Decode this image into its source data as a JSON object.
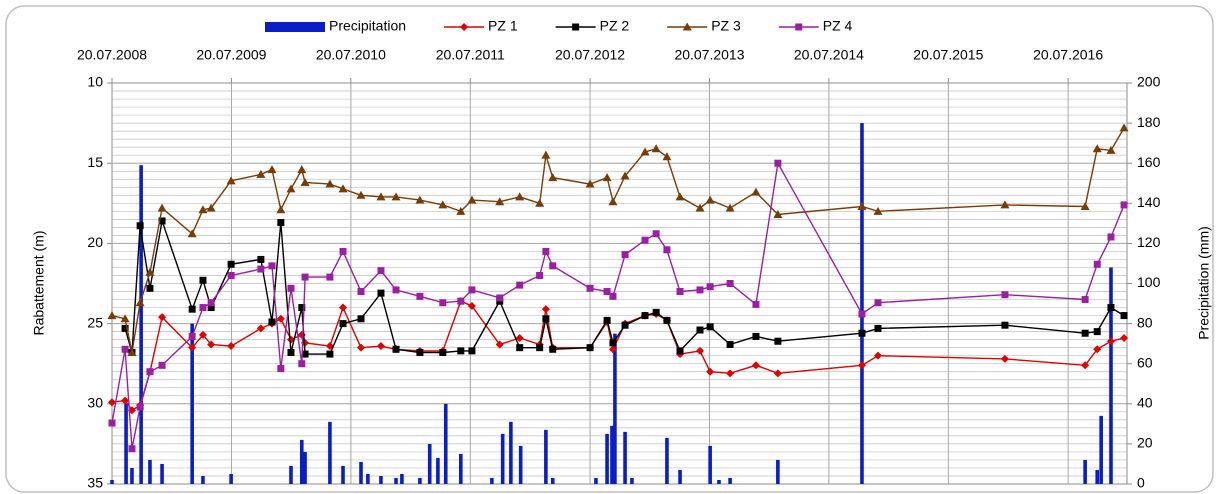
{
  "chart_data": {
    "type": "line",
    "y_label": "Rabattement  (m)",
    "y2_label": "Precipitation (mm)",
    "ylim": [
      10,
      35
    ],
    "y_reversed": true,
    "yticks": [
      10,
      15,
      20,
      25,
      30,
      35
    ],
    "y_minor_step": 0.5,
    "y2lim": [
      0,
      200
    ],
    "y2ticks": [
      0,
      20,
      40,
      60,
      80,
      100,
      120,
      140,
      160,
      180,
      200
    ],
    "xlim": [
      "2008-07-20",
      "2017-01-16"
    ],
    "xticks": [
      {
        "value": "2008-07-20",
        "label": "20.07.2008"
      },
      {
        "value": "2009-07-20",
        "label": "20.07.2009"
      },
      {
        "value": "2010-07-20",
        "label": "20.07.2010"
      },
      {
        "value": "2011-07-20",
        "label": "20.07.2011"
      },
      {
        "value": "2012-07-20",
        "label": "20.07.2012"
      },
      {
        "value": "2013-07-20",
        "label": "20.07.2013"
      },
      {
        "value": "2014-07-20",
        "label": "20.07.2014"
      },
      {
        "value": "2015-07-20",
        "label": "20.07.2015"
      },
      {
        "value": "2016-07-20",
        "label": "20.07.2016"
      }
    ],
    "grid": true,
    "legend": "top",
    "x": [
      "2008-07-20",
      "2008-08-29",
      "2008-09-19",
      "2008-10-14",
      "2008-11-13",
      "2008-12-20",
      "2009-03-22",
      "2009-04-24",
      "2009-05-19",
      "2009-07-19",
      "2009-10-18",
      "2009-11-21",
      "2009-12-18",
      "2010-01-18",
      "2010-02-20",
      "2010-03-02",
      "2010-05-17",
      "2010-06-26",
      "2010-08-20",
      "2010-10-20",
      "2010-12-05",
      "2011-02-16",
      "2011-04-27",
      "2011-06-21",
      "2011-07-25",
      "2011-10-18",
      "2011-12-18",
      "2012-02-17",
      "2012-03-07",
      "2012-03-28",
      "2012-07-20",
      "2012-09-10",
      "2012-09-28",
      "2012-11-04",
      "2013-01-04",
      "2013-02-07",
      "2013-03-12",
      "2013-04-21",
      "2013-06-21",
      "2013-07-22",
      "2013-09-21",
      "2013-12-09",
      "2014-02-14",
      "2014-10-29",
      "2014-12-17",
      "2016-01-09",
      "2016-09-10",
      "2016-10-17",
      "2016-11-28",
      "2017-01-07"
    ],
    "series": [
      {
        "name": "Precipitation",
        "type": "bar",
        "axis": "y2",
        "color": "#0a1ec8",
        "x": [
          "2008-07-20",
          "2008-09-01",
          "2008-09-19",
          "2008-10-17",
          "2008-11-13",
          "2008-12-20",
          "2009-03-22",
          "2009-04-24",
          "2009-07-19",
          "2010-01-18",
          "2010-02-20",
          "2010-03-02",
          "2010-05-17",
          "2010-06-26",
          "2010-08-20",
          "2010-09-10",
          "2010-10-20",
          "2010-12-05",
          "2010-12-23",
          "2011-02-16",
          "2011-03-18",
          "2011-04-12",
          "2011-05-06",
          "2011-06-21",
          "2011-09-24",
          "2011-10-27",
          "2011-11-21",
          "2011-12-21",
          "2012-03-07",
          "2012-03-28",
          "2012-08-07",
          "2012-09-10",
          "2012-09-25",
          "2012-10-04",
          "2012-11-04",
          "2012-11-25",
          "2013-03-12",
          "2013-04-21",
          "2013-07-22",
          "2013-08-18",
          "2013-09-21",
          "2014-02-14",
          "2014-10-29",
          "2016-09-10",
          "2016-10-17",
          "2016-10-29",
          "2016-11-28"
        ],
        "values": [
          2,
          40,
          8,
          159,
          12,
          10,
          80,
          4,
          5,
          9,
          22,
          16,
          31,
          9,
          11,
          5,
          4,
          3,
          5,
          3,
          20,
          13,
          40,
          15,
          3,
          25,
          31,
          19,
          27,
          3,
          3,
          25,
          29,
          75,
          26,
          3,
          23,
          7,
          19,
          2,
          3,
          12,
          180,
          12,
          7,
          34,
          108
        ]
      },
      {
        "name": "PZ 1",
        "color": "#e00000",
        "marker": "diamond",
        "values": [
          29.9,
          29.8,
          30.4,
          30.1,
          28.0,
          24.6,
          26.5,
          25.7,
          26.3,
          26.4,
          25.3,
          25.0,
          24.7,
          26.0,
          25.7,
          26.2,
          26.4,
          24.0,
          26.5,
          26.4,
          26.6,
          26.7,
          26.7,
          23.6,
          23.9,
          26.3,
          25.9,
          26.3,
          24.1,
          26.5,
          26.5,
          24.9,
          26.6,
          25.0,
          24.5,
          24.4,
          24.8,
          26.9,
          26.7,
          28.0,
          28.1,
          27.6,
          28.1,
          27.6,
          27.0,
          27.2,
          27.6,
          26.6,
          26.1,
          25.9
        ]
      },
      {
        "name": "PZ 2",
        "color": "#000000",
        "marker": "square",
        "values": [
          null,
          25.3,
          26.8,
          18.9,
          22.8,
          18.6,
          24.1,
          22.3,
          24.0,
          21.3,
          21.0,
          24.9,
          18.7,
          26.8,
          24.0,
          26.9,
          26.9,
          25.0,
          24.7,
          23.1,
          26.6,
          26.8,
          26.8,
          26.7,
          26.7,
          23.6,
          26.5,
          26.5,
          24.7,
          26.6,
          26.5,
          24.8,
          26.2,
          25.1,
          24.5,
          24.3,
          24.8,
          26.7,
          25.4,
          25.2,
          26.3,
          25.8,
          26.1,
          25.6,
          25.3,
          25.1,
          25.6,
          25.5,
          24.0,
          24.5
        ]
      },
      {
        "name": "PZ 3",
        "color": "#7a3c06",
        "marker": "triangle",
        "values": [
          24.5,
          24.7,
          26.8,
          23.7,
          21.8,
          17.8,
          19.4,
          17.9,
          17.8,
          16.1,
          15.7,
          15.4,
          17.9,
          16.6,
          15.4,
          16.2,
          16.3,
          16.6,
          17.0,
          17.1,
          17.1,
          17.3,
          17.6,
          18.0,
          17.3,
          17.4,
          17.1,
          17.5,
          14.5,
          15.9,
          16.3,
          15.9,
          17.4,
          15.8,
          14.3,
          14.1,
          14.6,
          17.1,
          17.8,
          17.3,
          17.8,
          16.8,
          18.2,
          17.7,
          18.0,
          17.6,
          17.7,
          14.1,
          14.2,
          12.8
        ]
      },
      {
        "name": "PZ 4",
        "color": "#9c1fa3",
        "marker": "square",
        "values": [
          31.2,
          26.6,
          32.8,
          30.2,
          28.0,
          27.6,
          25.8,
          24.0,
          23.7,
          22.0,
          21.6,
          21.4,
          27.8,
          22.8,
          27.5,
          22.1,
          22.1,
          20.5,
          23.0,
          21.7,
          22.9,
          23.3,
          23.7,
          23.6,
          22.9,
          23.4,
          22.6,
          22.0,
          20.5,
          21.4,
          22.8,
          23.0,
          23.3,
          20.7,
          19.8,
          19.4,
          20.4,
          23.0,
          22.9,
          22.7,
          22.5,
          23.8,
          15.0,
          24.4,
          23.7,
          23.2,
          23.5,
          21.3,
          19.6,
          17.6
        ]
      }
    ]
  }
}
